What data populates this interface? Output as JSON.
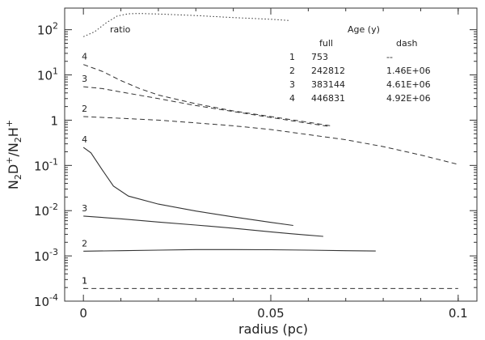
{
  "chart_data": {
    "type": "line",
    "title": "",
    "xlabel": "radius (pc)",
    "ylabel_parts": {
      "base": "N",
      "sub2": "2",
      "mid": "D",
      "sup1": "+",
      "slash": "/N",
      "sub2b": "2",
      "mid2": "H",
      "sup2": "+"
    },
    "ylabel": "N2D+/N2H+",
    "xlim": [
      -0.005,
      0.105
    ],
    "ylim": [
      0.0001,
      300
    ],
    "yscale": "log",
    "xticks": [
      0,
      0.05,
      0.1
    ],
    "xtick_labels": [
      "0",
      "0.05",
      "0.1"
    ],
    "yticks": [
      0.0001,
      0.001,
      0.01,
      0.1,
      1,
      10,
      100
    ],
    "ytick_labels": [
      {
        "base": "10",
        "exp": "-4"
      },
      {
        "base": "10",
        "exp": "-3"
      },
      {
        "base": "10",
        "exp": "-2"
      },
      {
        "base": "10",
        "exp": "-1"
      },
      {
        "base": "1",
        "exp": ""
      },
      {
        "base": "10",
        "exp": "1"
      },
      {
        "base": "10",
        "exp": "2"
      }
    ],
    "annotation": "ratio",
    "series": [
      {
        "label": "1",
        "style": "solid",
        "x": [
          0,
          0.0005
        ],
        "y": [
          0.00019,
          0.00019
        ]
      },
      {
        "label": "2",
        "style": "solid",
        "x": [
          0,
          0.01,
          0.02,
          0.03,
          0.04,
          0.05,
          0.06,
          0.07,
          0.078
        ],
        "y": [
          0.00127,
          0.0013,
          0.00134,
          0.00138,
          0.00138,
          0.00137,
          0.00134,
          0.0013,
          0.00128
        ]
      },
      {
        "label": "3",
        "style": "solid",
        "x": [
          0,
          0.01,
          0.02,
          0.03,
          0.04,
          0.05,
          0.055,
          0.064
        ],
        "y": [
          0.0076,
          0.0066,
          0.0056,
          0.0048,
          0.0041,
          0.0034,
          0.0031,
          0.0027
        ]
      },
      {
        "label": "4",
        "style": "solid",
        "x": [
          0,
          0.002,
          0.005,
          0.008,
          0.012,
          0.02,
          0.03,
          0.04,
          0.05,
          0.056
        ],
        "y": [
          0.25,
          0.19,
          0.08,
          0.035,
          0.021,
          0.014,
          0.0098,
          0.0073,
          0.0055,
          0.0047
        ]
      },
      {
        "label": "1",
        "style": "dashed",
        "x": [
          0,
          0.02,
          0.04,
          0.06,
          0.08,
          0.1
        ],
        "y": [
          0.00019,
          0.00019,
          0.00019,
          0.00019,
          0.00019,
          0.00019
        ]
      },
      {
        "label": "2",
        "style": "dashed",
        "x": [
          0,
          0.01,
          0.02,
          0.03,
          0.04,
          0.05,
          0.06,
          0.07,
          0.08,
          0.09,
          0.1
        ],
        "y": [
          1.2,
          1.1,
          1.0,
          0.87,
          0.75,
          0.62,
          0.48,
          0.37,
          0.26,
          0.17,
          0.105
        ]
      },
      {
        "label": "3",
        "style": "dashed",
        "x": [
          0,
          0.005,
          0.01,
          0.02,
          0.03,
          0.04,
          0.05,
          0.06,
          0.066
        ],
        "y": [
          5.5,
          5.0,
          4.2,
          3.0,
          2.1,
          1.55,
          1.15,
          0.85,
          0.72
        ]
      },
      {
        "label": "4",
        "style": "dashed",
        "x": [
          0,
          0.005,
          0.01,
          0.015,
          0.02,
          0.03,
          0.04,
          0.05,
          0.06,
          0.066
        ],
        "y": [
          17,
          12,
          7.5,
          5.0,
          3.6,
          2.3,
          1.6,
          1.2,
          0.9,
          0.75
        ]
      },
      {
        "label": "ratio",
        "style": "dotted",
        "x": [
          0,
          0.003,
          0.006,
          0.009,
          0.012,
          0.015,
          0.02,
          0.03,
          0.04,
          0.05,
          0.055
        ],
        "y": [
          70,
          90,
          140,
          200,
          225,
          228,
          222,
          205,
          185,
          170,
          160
        ]
      }
    ],
    "table": {
      "title": "Age (y)",
      "columns": [
        "full",
        "dash"
      ],
      "rows": [
        {
          "id": "1",
          "full": "753",
          "dash": "--"
        },
        {
          "id": "2",
          "full": "242812",
          "dash": "1.46E+06"
        },
        {
          "id": "3",
          "full": "383144",
          "dash": "4.61E+06"
        },
        {
          "id": "4",
          "full": "446831",
          "dash": "4.92E+06"
        }
      ]
    },
    "grid": false,
    "legend": "table in upper right"
  }
}
